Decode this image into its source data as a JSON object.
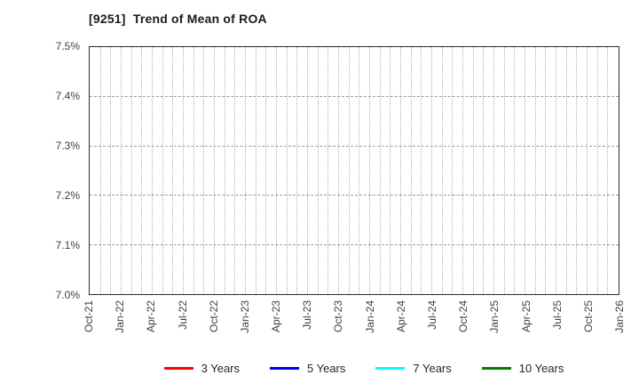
{
  "title": "[9251]  Trend of Mean of ROA",
  "chart_data": {
    "type": "line",
    "title": "[9251]  Trend of Mean of ROA",
    "xlabel": "",
    "ylabel": "",
    "ylim": [
      7.0,
      7.5
    ],
    "y_tick_step": 0.1,
    "y_tick_labels": [
      "7.0%",
      "7.1%",
      "7.2%",
      "7.3%",
      "7.4%",
      "7.5%"
    ],
    "x_tick_labels": [
      "Oct-21",
      "Jan-22",
      "Apr-22",
      "Jul-22",
      "Oct-22",
      "Jan-23",
      "Apr-23",
      "Jul-23",
      "Oct-23",
      "Jan-24",
      "Apr-24",
      "Jul-24",
      "Oct-24",
      "Jan-25",
      "Apr-25",
      "Jul-25",
      "Oct-25",
      "Jan-26"
    ],
    "x_minor_ticks_per_interval": 3,
    "grid": true,
    "legend_position": "bottom",
    "series": [
      {
        "name": "3 Years",
        "color": "#ff0000",
        "values": []
      },
      {
        "name": "5 Years",
        "color": "#0000ff",
        "values": []
      },
      {
        "name": "7 Years",
        "color": "#00ffff",
        "values": []
      },
      {
        "name": "10 Years",
        "color": "#008000",
        "values": []
      }
    ]
  }
}
